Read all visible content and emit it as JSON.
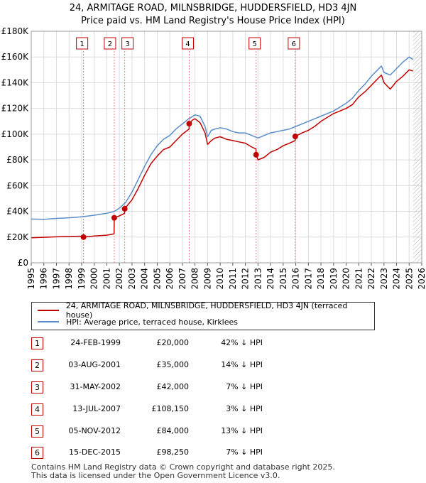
{
  "chart_data": {
    "type": "line",
    "title": "24, ARMITAGE ROAD, MILNSBRIDGE, HUDDERSFIELD, HD3 4JN",
    "subtitle": "Price paid vs. HM Land Registry's House Price Index (HPI)",
    "xlim": [
      1995,
      2026
    ],
    "ylim": [
      0,
      180000
    ],
    "y_ticks": [
      0,
      20000,
      40000,
      60000,
      80000,
      100000,
      120000,
      140000,
      160000,
      180000
    ],
    "y_tick_labels": [
      "£0",
      "£20K",
      "£40K",
      "£60K",
      "£80K",
      "£100K",
      "£120K",
      "£140K",
      "£160K",
      "£180K"
    ],
    "x_ticks": [
      1995,
      1996,
      1997,
      1998,
      1999,
      2000,
      2001,
      2002,
      2003,
      2004,
      2005,
      2006,
      2007,
      2008,
      2009,
      2010,
      2011,
      2012,
      2013,
      2014,
      2015,
      2016,
      2017,
      2018,
      2019,
      2020,
      2021,
      2022,
      2023,
      2024,
      2025,
      2026
    ],
    "x_tick_labels": [
      "1995",
      "1996",
      "1997",
      "1998",
      "1999",
      "2000",
      "2001",
      "2002",
      "2003",
      "2004",
      "2005",
      "2006",
      "2007",
      "2008",
      "2009",
      "2010",
      "2011",
      "2012",
      "2013",
      "2014",
      "2015",
      "2016",
      "2017",
      "2018",
      "2019",
      "2020",
      "2021",
      "2022",
      "2023",
      "2024",
      "2025",
      "2026"
    ],
    "grid": true,
    "future_hatch_from": 2025.3,
    "series": [
      {
        "name": "24, ARMITAGE ROAD, MILNSBRIDGE, HUDDERSFIELD, HD3 4JN (terraced house)",
        "color": "#c00000",
        "x": [
          1995.0,
          1996.0,
          1997.0,
          1998.0,
          1999.15,
          1999.16,
          2000.0,
          2001.0,
          2001.58,
          2001.59,
          2002.0,
          2002.41,
          2002.42,
          2003.0,
          2003.5,
          2004.0,
          2004.5,
          2005.0,
          2005.5,
          2006.0,
          2006.5,
          2007.0,
          2007.53,
          2007.54,
          2007.8,
          2008.0,
          2008.4,
          2008.8,
          2009.0,
          2009.3,
          2009.6,
          2010.0,
          2010.5,
          2011.0,
          2011.5,
          2012.0,
          2012.5,
          2012.84,
          2012.85,
          2013.0,
          2013.5,
          2014.0,
          2014.5,
          2015.0,
          2015.5,
          2015.95,
          2015.96,
          2016.5,
          2017.0,
          2017.5,
          2018.0,
          2018.5,
          2019.0,
          2019.5,
          2020.0,
          2020.5,
          2021.0,
          2021.5,
          2022.0,
          2022.5,
          2022.8,
          2023.0,
          2023.5,
          2024.0,
          2024.5,
          2025.0,
          2025.3
        ],
        "values": [
          19500,
          19800,
          20200,
          20500,
          20700,
          20000,
          20800,
          21500,
          22500,
          35000,
          36500,
          38500,
          42000,
          49000,
          58000,
          68000,
          77000,
          83000,
          88000,
          90000,
          95000,
          100000,
          104000,
          108150,
          111000,
          112000,
          109000,
          101000,
          92000,
          95000,
          97000,
          98000,
          96000,
          95000,
          94000,
          93000,
          90000,
          88500,
          84000,
          80000,
          82000,
          86000,
          88000,
          91000,
          93000,
          95000,
          98250,
          101000,
          103000,
          106000,
          110000,
          113000,
          116000,
          118000,
          120000,
          123000,
          129000,
          133000,
          138000,
          143000,
          146000,
          140000,
          135000,
          141000,
          145000,
          150000,
          149000
        ]
      },
      {
        "name": "HPI: Average price, terraced house, Kirklees",
        "color": "#5b8dc9",
        "x": [
          1995.0,
          1996.0,
          1997.0,
          1998.0,
          1999.0,
          2000.0,
          2001.0,
          2001.6,
          2002.0,
          2002.5,
          2003.0,
          2003.5,
          2004.0,
          2004.5,
          2005.0,
          2005.5,
          2006.0,
          2006.5,
          2007.0,
          2007.5,
          2008.0,
          2008.4,
          2008.8,
          2009.0,
          2009.3,
          2009.6,
          2010.0,
          2010.5,
          2011.0,
          2011.5,
          2012.0,
          2012.5,
          2013.0,
          2013.5,
          2014.0,
          2014.5,
          2015.0,
          2015.5,
          2016.0,
          2016.5,
          2017.0,
          2017.5,
          2018.0,
          2018.5,
          2019.0,
          2019.5,
          2020.0,
          2020.5,
          2021.0,
          2021.5,
          2022.0,
          2022.5,
          2022.8,
          2023.0,
          2023.5,
          2024.0,
          2024.5,
          2025.0,
          2025.3
        ],
        "values": [
          34000,
          33800,
          34500,
          35000,
          35800,
          37000,
          38500,
          40000,
          42500,
          47000,
          55000,
          65000,
          75000,
          84000,
          91000,
          96000,
          99000,
          104000,
          108000,
          112000,
          115000,
          114000,
          106000,
          98000,
          103000,
          104000,
          105000,
          104000,
          102000,
          101000,
          101000,
          99000,
          97000,
          99000,
          101000,
          102000,
          103000,
          104000,
          106000,
          108000,
          110000,
          112000,
          114000,
          116000,
          118000,
          121000,
          124000,
          128000,
          134000,
          139000,
          145000,
          150000,
          153000,
          148000,
          146000,
          151000,
          156000,
          160000,
          158000
        ]
      }
    ],
    "sales": [
      {
        "label": "1",
        "x": 1999.15,
        "value": 20000
      },
      {
        "label": "2",
        "x": 2001.59,
        "value": 35000
      },
      {
        "label": "3",
        "x": 2002.42,
        "value": 42000
      },
      {
        "label": "4",
        "x": 2007.54,
        "value": 108150
      },
      {
        "label": "5",
        "x": 2012.85,
        "value": 84000
      },
      {
        "label": "6",
        "x": 2015.96,
        "value": 98250
      }
    ]
  },
  "legend": {
    "items": [
      {
        "label": "24, ARMITAGE ROAD, MILNSBRIDGE, HUDDERSFIELD, HD3 4JN (terraced house)",
        "color": "#c00000"
      },
      {
        "label": "HPI: Average price, terraced house, Kirklees",
        "color": "#5b8dc9"
      }
    ]
  },
  "transactions": [
    {
      "num": "1",
      "date": "24-FEB-1999",
      "price": "£20,000",
      "hpi": "42% ↓ HPI"
    },
    {
      "num": "2",
      "date": "03-AUG-2001",
      "price": "£35,000",
      "hpi": "14% ↓ HPI"
    },
    {
      "num": "3",
      "date": "31-MAY-2002",
      "price": "£42,000",
      "hpi": "7% ↓ HPI"
    },
    {
      "num": "4",
      "date": "13-JUL-2007",
      "price": "£108,150",
      "hpi": "3% ↓ HPI"
    },
    {
      "num": "5",
      "date": "05-NOV-2012",
      "price": "£84,000",
      "hpi": "13% ↓ HPI"
    },
    {
      "num": "6",
      "date": "15-DEC-2015",
      "price": "£98,250",
      "hpi": "7% ↓ HPI"
    }
  ],
  "footer": {
    "line1": "Contains HM Land Registry data © Crown copyright and database right 2025.",
    "line2": "This data is licensed under the Open Government Licence v3.0."
  }
}
